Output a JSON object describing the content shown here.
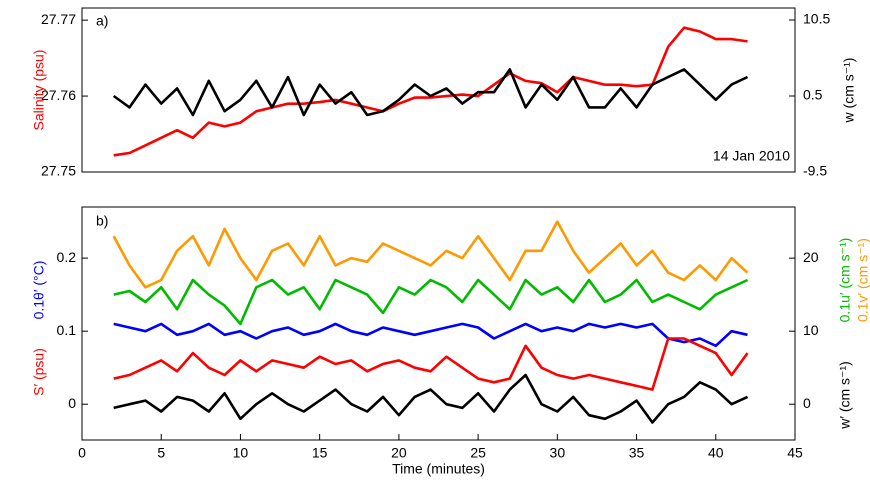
{
  "chart_data": [
    {
      "type": "line",
      "annotations": [
        "a)",
        "14 Jan 2010"
      ],
      "ylabels": [
        {
          "text": "Salinity (psu)",
          "color": "#ff0000"
        }
      ],
      "y2labels": [
        {
          "text": "w (cm s⁻¹)",
          "color": "#000000"
        }
      ],
      "xlim": [
        0,
        45
      ],
      "ylim": [
        27.75,
        27.7716
      ],
      "yticks": [
        27.75,
        27.76,
        27.77
      ],
      "y2lim": [
        -9.5,
        12.08
      ],
      "y2ticks": [
        -9.5,
        0.5,
        10.5
      ],
      "x": [
        2,
        3,
        4,
        5,
        6,
        7,
        8,
        9,
        10,
        11,
        12,
        13,
        14,
        15,
        16,
        17,
        18,
        19,
        20,
        21,
        22,
        23,
        24,
        25,
        26,
        27,
        28,
        29,
        30,
        31,
        32,
        33,
        34,
        35,
        36,
        37,
        38,
        39,
        40,
        41,
        42
      ],
      "series": [
        {
          "name": "Salinity",
          "color": "#ff0000",
          "values": [
            27.7522,
            27.7525,
            27.7535,
            27.7545,
            27.7555,
            27.7545,
            27.7565,
            27.756,
            27.7565,
            27.758,
            27.7585,
            27.759,
            27.759,
            27.7592,
            27.7595,
            27.759,
            27.7585,
            27.758,
            27.759,
            27.7598,
            27.7598,
            27.76,
            27.7602,
            27.76,
            27.7615,
            27.763,
            27.762,
            27.7617,
            27.7605,
            27.7625,
            27.762,
            27.7615,
            27.7615,
            27.7613,
            27.7615,
            27.7665,
            27.769,
            27.7685,
            27.7675,
            27.7675,
            27.7672
          ]
        },
        {
          "name": "w",
          "color": "#000000",
          "axis": "y2",
          "values": [
            0.5,
            -1,
            2,
            -0.5,
            1.5,
            -2,
            2.5,
            -1.5,
            0,
            2.5,
            -1,
            3,
            -2,
            2,
            -0.5,
            1,
            -2,
            -1.5,
            0,
            2,
            0.5,
            1.5,
            -0.5,
            1,
            1,
            4,
            -1,
            2,
            0,
            3,
            -1,
            -1,
            1.5,
            -1,
            2,
            3,
            4,
            2,
            0,
            2,
            3
          ]
        }
      ]
    },
    {
      "type": "line",
      "annotations": [
        "b)"
      ],
      "xlabel": "Time (minutes)",
      "ylabels": [
        {
          "text": "0.1θ′ (°C)",
          "color": "#0000ff"
        },
        {
          "text": "S′ (psu)",
          "color": "#ff0000"
        }
      ],
      "y2labels": [
        {
          "text": "0.1u′ (cm s⁻¹)",
          "color": "#00bb00"
        },
        {
          "text": "0.1v′ (cm s⁻¹)",
          "color": "#ff9900"
        },
        {
          "text": "w′ (cm s⁻¹)",
          "color": "#000000"
        }
      ],
      "xlim": [
        0,
        45
      ],
      "xticks": [
        0,
        5,
        10,
        15,
        20,
        25,
        30,
        35,
        40,
        45
      ],
      "ylim": [
        -0.049,
        0.27
      ],
      "yticks": [
        0,
        0.1,
        0.2
      ],
      "y2lim": [
        -4.9,
        27
      ],
      "y2ticks": [
        0,
        10,
        20
      ],
      "x": [
        2,
        3,
        4,
        5,
        6,
        7,
        8,
        9,
        10,
        11,
        12,
        13,
        14,
        15,
        16,
        17,
        18,
        19,
        20,
        21,
        22,
        23,
        24,
        25,
        26,
        27,
        28,
        29,
        30,
        31,
        32,
        33,
        34,
        35,
        36,
        37,
        38,
        39,
        40,
        41,
        42
      ],
      "series": [
        {
          "name": "0.1θ′",
          "color": "#0000ff",
          "values": [
            0.11,
            0.105,
            0.1,
            0.11,
            0.095,
            0.1,
            0.11,
            0.095,
            0.1,
            0.09,
            0.1,
            0.105,
            0.095,
            0.1,
            0.11,
            0.1,
            0.095,
            0.105,
            0.1,
            0.095,
            0.1,
            0.105,
            0.11,
            0.105,
            0.09,
            0.1,
            0.11,
            0.1,
            0.105,
            0.1,
            0.11,
            0.105,
            0.11,
            0.105,
            0.11,
            0.09,
            0.085,
            0.09,
            0.08,
            0.1,
            0.095
          ]
        },
        {
          "name": "S′",
          "color": "#ff0000",
          "values": [
            0.035,
            0.04,
            0.05,
            0.06,
            0.045,
            0.07,
            0.05,
            0.04,
            0.06,
            0.045,
            0.06,
            0.055,
            0.05,
            0.065,
            0.055,
            0.06,
            0.045,
            0.055,
            0.06,
            0.05,
            0.045,
            0.065,
            0.05,
            0.035,
            0.03,
            0.035,
            0.08,
            0.05,
            0.04,
            0.035,
            0.04,
            0.035,
            0.03,
            0.025,
            0.02,
            0.09,
            0.09,
            0.08,
            0.07,
            0.04,
            0.07
          ]
        },
        {
          "name": "w′",
          "color": "#000000",
          "values": [
            -0.005,
            0,
            0.005,
            -0.01,
            0.01,
            0.005,
            -0.01,
            0.015,
            -0.02,
            0,
            0.015,
            0,
            -0.01,
            0.005,
            0.02,
            0,
            -0.01,
            0.01,
            -0.015,
            0.01,
            0.02,
            0,
            -0.005,
            0.015,
            -0.01,
            0.02,
            0.04,
            0,
            -0.01,
            0.01,
            -0.015,
            -0.02,
            -0.01,
            0.005,
            -0.025,
            0,
            0.01,
            0.03,
            0.02,
            0,
            0.01
          ]
        },
        {
          "name": "0.1u′",
          "color": "#00bb00",
          "axis": "y2",
          "values": [
            15,
            15.5,
            14,
            16,
            13,
            17,
            15,
            13.5,
            11,
            16,
            17,
            15,
            16,
            13,
            17,
            16,
            15,
            12.5,
            16,
            15,
            17,
            16,
            14,
            17,
            15,
            13,
            17,
            15,
            16,
            14,
            17,
            14,
            15,
            17,
            14,
            15,
            14,
            13,
            15,
            16,
            17
          ]
        },
        {
          "name": "0.1v′",
          "color": "#ff9900",
          "axis": "y2",
          "values": [
            23,
            19,
            16,
            17,
            21,
            23,
            19,
            24,
            20,
            17,
            21,
            22,
            19,
            23,
            19,
            20,
            19.5,
            22,
            21,
            20,
            19,
            21,
            20,
            23,
            20,
            17,
            21,
            21,
            25,
            21,
            18,
            20,
            22,
            19,
            21,
            18,
            17,
            19,
            17,
            20,
            18
          ]
        }
      ]
    }
  ]
}
